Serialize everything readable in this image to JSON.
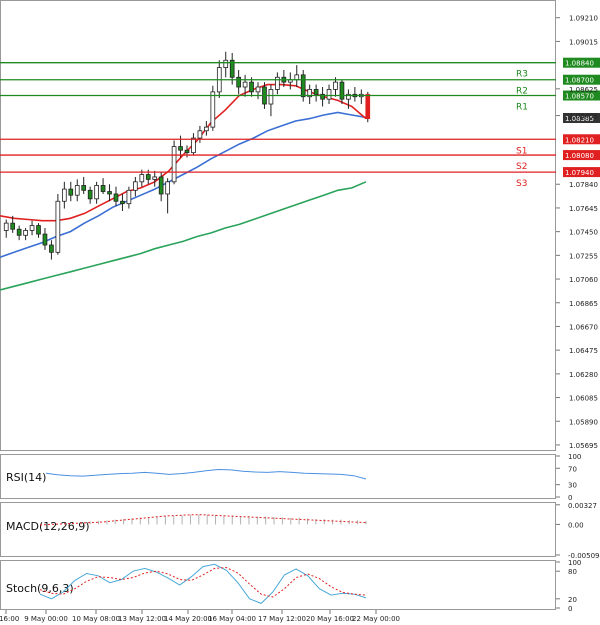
{
  "colors": {
    "support": "#e02020",
    "resistance": "#1f8a1f",
    "ma_fast": "#e02020",
    "ma_mid": "#3b6fd4",
    "ma_slow": "#2aa35a",
    "candle": "#1f8a1f",
    "rsi": "#4a90e2",
    "macd_bar": "#b0b0b0",
    "macd_signal": "#e02020",
    "stoch_k": "#4aa8d8",
    "stoch_d": "#e02020",
    "price_badge": "#333333"
  },
  "chart_data": {
    "type": "candlestick",
    "title": "",
    "x_tick_labels": [
      "y 16:00",
      "9 May 00:00",
      "10 May 08:00",
      "13 May 12:00",
      "14 May 20:00",
      "16 May 04:00",
      "17 May 12:00",
      "20 May 16:00",
      "22 May 00:00"
    ],
    "y_tick_labels": [
      "1.09210",
      "1.09015",
      "1.08625",
      "1.08405",
      "1.07840",
      "1.07645",
      "1.07450",
      "1.07255",
      "1.07060",
      "1.06865",
      "1.06670",
      "1.06475",
      "1.06280",
      "1.06085",
      "1.05890",
      "1.05695"
    ],
    "ylim": [
      1.0567,
      1.0929
    ],
    "grid": false,
    "current_price": "1.08385",
    "levels": [
      {
        "label": "R3",
        "value": 1.0884,
        "value_label": "1.08840",
        "kind": "resistance"
      },
      {
        "label": "R2",
        "value": 1.087,
        "value_label": "1.08700",
        "kind": "resistance"
      },
      {
        "label": "R1",
        "value": 1.0857,
        "value_label": "1.08570",
        "kind": "resistance"
      },
      {
        "label": "S1",
        "value": 1.0821,
        "value_label": "1.08210",
        "kind": "support"
      },
      {
        "label": "S2",
        "value": 1.0808,
        "value_label": "1.08080",
        "kind": "support"
      },
      {
        "label": "S3",
        "value": 1.0794,
        "value_label": "1.07940",
        "kind": "support"
      }
    ],
    "candles": [
      [
        1.0746,
        1.0755,
        1.074,
        1.0752
      ],
      [
        1.0752,
        1.0758,
        1.0744,
        1.0747
      ],
      [
        1.0747,
        1.075,
        1.0738,
        1.0742
      ],
      [
        1.0742,
        1.0748,
        1.0738,
        1.0746
      ],
      [
        1.0746,
        1.0754,
        1.0742,
        1.075
      ],
      [
        1.075,
        1.0752,
        1.074,
        1.0743
      ],
      [
        1.0743,
        1.0748,
        1.073,
        1.0734
      ],
      [
        1.0734,
        1.0738,
        1.0722,
        1.0728
      ],
      [
        1.0728,
        1.0776,
        1.0726,
        1.077
      ],
      [
        1.077,
        1.0786,
        1.0764,
        1.078
      ],
      [
        1.078,
        1.0786,
        1.077,
        1.0775
      ],
      [
        1.0775,
        1.0788,
        1.077,
        1.0783
      ],
      [
        1.0783,
        1.079,
        1.0776,
        1.0779
      ],
      [
        1.0779,
        1.0782,
        1.0768,
        1.0772
      ],
      [
        1.0772,
        1.0786,
        1.0768,
        1.0783
      ],
      [
        1.0783,
        1.0789,
        1.0776,
        1.0778
      ],
      [
        1.0778,
        1.0784,
        1.077,
        1.0776
      ],
      [
        1.0776,
        1.0782,
        1.0766,
        1.077
      ],
      [
        1.077,
        1.0776,
        1.0762,
        1.0768
      ],
      [
        1.0768,
        1.0782,
        1.0764,
        1.0779
      ],
      [
        1.0779,
        1.079,
        1.0774,
        1.0786
      ],
      [
        1.0786,
        1.0796,
        1.0782,
        1.0792
      ],
      [
        1.0792,
        1.0796,
        1.0784,
        1.0788
      ],
      [
        1.0788,
        1.0795,
        1.0782,
        1.079
      ],
      [
        1.079,
        1.0794,
        1.077,
        1.0776
      ],
      [
        1.0776,
        1.0789,
        1.076,
        1.0786
      ],
      [
        1.0786,
        1.082,
        1.0784,
        1.0815
      ],
      [
        1.0815,
        1.0824,
        1.0806,
        1.0812
      ],
      [
        1.0812,
        1.0816,
        1.0806,
        1.081
      ],
      [
        1.081,
        1.0826,
        1.0808,
        1.0822
      ],
      [
        1.0822,
        1.0832,
        1.0818,
        1.0828
      ],
      [
        1.0828,
        1.0836,
        1.0824,
        1.0831
      ],
      [
        1.0831,
        1.0865,
        1.0828,
        1.086
      ],
      [
        1.086,
        1.0886,
        1.0855,
        1.088
      ],
      [
        1.088,
        1.0893,
        1.0872,
        1.0886
      ],
      [
        1.0886,
        1.0892,
        1.0866,
        1.0872
      ],
      [
        1.0872,
        1.0878,
        1.0858,
        1.0864
      ],
      [
        1.0864,
        1.0874,
        1.0856,
        1.0868
      ],
      [
        1.0868,
        1.0872,
        1.0856,
        1.086
      ],
      [
        1.086,
        1.0868,
        1.0854,
        1.0864
      ],
      [
        1.0864,
        1.0868,
        1.0846,
        1.085
      ],
      [
        1.085,
        1.0866,
        1.084,
        1.0862
      ],
      [
        1.0862,
        1.0876,
        1.0858,
        1.0872
      ],
      [
        1.0872,
        1.0878,
        1.0864,
        1.0868
      ],
      [
        1.0868,
        1.0876,
        1.0862,
        1.087
      ],
      [
        1.087,
        1.0882,
        1.0864,
        1.0874
      ],
      [
        1.0874,
        1.0878,
        1.0852,
        1.0856
      ],
      [
        1.0856,
        1.0866,
        1.085,
        1.0862
      ],
      [
        1.0862,
        1.0866,
        1.0852,
        1.0858
      ],
      [
        1.0858,
        1.0864,
        1.0848,
        1.0854
      ],
      [
        1.0854,
        1.0866,
        1.085,
        1.0862
      ],
      [
        1.0862,
        1.0872,
        1.0856,
        1.0868
      ],
      [
        1.0868,
        1.087,
        1.085,
        1.0854
      ],
      [
        1.0854,
        1.0862,
        1.0846,
        1.0858
      ],
      [
        1.0858,
        1.0864,
        1.0852,
        1.0856
      ],
      [
        1.0856,
        1.0862,
        1.085,
        1.0858
      ],
      [
        1.0858,
        1.086,
        1.0835,
        1.0838
      ]
    ],
    "ma_fast": [
      1.0758,
      1.0756,
      1.0755,
      1.0754,
      1.0754,
      1.0756,
      1.076,
      1.0766,
      1.0772,
      1.0778,
      1.0781,
      1.0786,
      1.0795,
      1.0808,
      1.082,
      1.0835,
      1.0845,
      1.0857,
      1.0862,
      1.0866,
      1.0866,
      1.0865,
      1.086,
      1.0856,
      1.0853,
      1.0848,
      1.0838
    ],
    "ma_mid": [
      1.0724,
      1.0728,
      1.0732,
      1.0736,
      1.0741,
      1.0745,
      1.0752,
      1.0758,
      1.0765,
      1.077,
      1.0775,
      1.078,
      1.0786,
      1.0792,
      1.0798,
      1.0805,
      1.0811,
      1.0817,
      1.0822,
      1.0828,
      1.0832,
      1.0836,
      1.0838,
      1.0841,
      1.0843,
      1.0841,
      1.0839
    ],
    "ma_slow": [
      1.0697,
      1.07,
      1.0703,
      1.0706,
      1.0709,
      1.0712,
      1.0715,
      1.0718,
      1.0721,
      1.0724,
      1.0727,
      1.0731,
      1.0734,
      1.0737,
      1.0741,
      1.0744,
      1.0748,
      1.0751,
      1.0755,
      1.0759,
      1.0763,
      1.0767,
      1.0771,
      1.0775,
      1.0779,
      1.0781,
      1.0786
    ],
    "indicators": [
      {
        "name": "RSI(14)",
        "ylim": [
          0,
          100
        ],
        "tick_labels": [
          "100",
          "70",
          "30",
          "0"
        ],
        "tick_values": [
          100,
          70,
          30,
          0
        ],
        "series": [
          {
            "name": "RSI",
            "values": [
              58,
              54,
              52,
              51,
              53,
              55,
              57,
              58,
              60,
              58,
              55,
              57,
              60,
              64,
              67,
              66,
              63,
              61,
              60,
              62,
              60,
              58,
              57,
              56,
              55,
              52,
              44
            ]
          }
        ]
      },
      {
        "name": "MACD(12,26,9)",
        "ylim": [
          -0.0051,
          0.0034
        ],
        "tick_labels": [
          "0.00327",
          "0.00",
          "-0.005094"
        ],
        "tick_values": [
          0.00327,
          0.0,
          -0.005094
        ],
        "histogram": [
          0.0,
          0.0001,
          0.0001,
          0.0002,
          0.0003,
          0.0004,
          0.0005,
          0.0006,
          0.0007,
          0.0008,
          0.0009,
          0.001,
          0.0011,
          0.0012,
          0.0013,
          0.0014,
          0.0014,
          0.0015,
          0.0016,
          0.0016,
          0.0016,
          0.0016,
          0.0015,
          0.0015,
          0.0014,
          0.0014,
          0.0013,
          0.0013,
          0.0012,
          0.0012,
          0.0011,
          0.0011,
          0.001,
          0.0009,
          0.0009,
          0.0008,
          0.0008,
          0.0007,
          0.0007,
          0.0006
        ],
        "signal": [
          -0.0001,
          0.0,
          0.0001,
          0.0002,
          0.0003,
          0.0004,
          0.0006,
          0.0008,
          0.001,
          0.0012,
          0.0014,
          0.0015,
          0.0016,
          0.0016,
          0.0015,
          0.0014,
          0.0013,
          0.0012,
          0.0011,
          0.001,
          0.0009,
          0.0008,
          0.0007,
          0.0006,
          0.0005,
          0.0004,
          0.0003
        ]
      },
      {
        "name": "Stoch(9,6,3)",
        "ylim": [
          0,
          100
        ],
        "tick_labels": [
          "100",
          "80",
          "20",
          "0"
        ],
        "tick_values": [
          100,
          80,
          20,
          0
        ],
        "series": [
          {
            "name": "%K",
            "values": [
              30,
              20,
              35,
              60,
              75,
              70,
              55,
              62,
              80,
              86,
              78,
              65,
              50,
              68,
              90,
              95,
              82,
              55,
              20,
              10,
              35,
              72,
              85,
              70,
              42,
              28,
              32,
              30,
              22
            ]
          },
          {
            "name": "%D",
            "values": [
              40,
              32,
              30,
              42,
              58,
              68,
              66,
              62,
              66,
              76,
              80,
              74,
              62,
              60,
              72,
              86,
              88,
              76,
              52,
              30,
              24,
              42,
              66,
              74,
              64,
              46,
              34,
              30,
              28
            ]
          }
        ]
      }
    ]
  }
}
